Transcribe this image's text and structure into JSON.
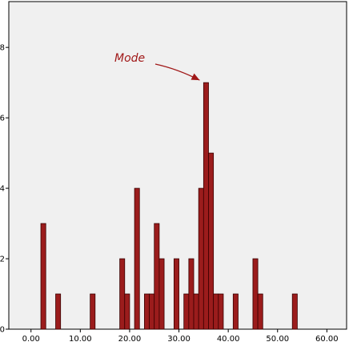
{
  "chart_data": {
    "type": "bar",
    "subtype": "histogram",
    "bin_width": 1,
    "xlim": [
      -4.5,
      64
    ],
    "ylim": [
      0,
      9.3
    ],
    "x_ticks": [
      0,
      10,
      20,
      30,
      40,
      50,
      60
    ],
    "x_tick_labels": [
      "0.00",
      "10.00",
      "20.00",
      "30.00",
      "40.00",
      "50.00",
      "60.00"
    ],
    "y_ticks": [
      0,
      2,
      4,
      6,
      8
    ],
    "y_tick_labels": [
      "0",
      "2",
      "4",
      "6",
      "8"
    ],
    "bins": [
      {
        "x": 2.5,
        "count": 3
      },
      {
        "x": 5.5,
        "count": 1
      },
      {
        "x": 12.5,
        "count": 1
      },
      {
        "x": 18.5,
        "count": 2
      },
      {
        "x": 19.5,
        "count": 1
      },
      {
        "x": 21.5,
        "count": 4
      },
      {
        "x": 23.5,
        "count": 1
      },
      {
        "x": 24.5,
        "count": 1
      },
      {
        "x": 25.5,
        "count": 3
      },
      {
        "x": 26.5,
        "count": 2
      },
      {
        "x": 29.5,
        "count": 2
      },
      {
        "x": 31.5,
        "count": 1
      },
      {
        "x": 32.5,
        "count": 2
      },
      {
        "x": 33.5,
        "count": 1
      },
      {
        "x": 34.5,
        "count": 4
      },
      {
        "x": 35.5,
        "count": 7
      },
      {
        "x": 36.5,
        "count": 5
      },
      {
        "x": 37.5,
        "count": 1
      },
      {
        "x": 38.5,
        "count": 1
      },
      {
        "x": 41.5,
        "count": 1
      },
      {
        "x": 45.5,
        "count": 2
      },
      {
        "x": 46.5,
        "count": 1
      },
      {
        "x": 53.5,
        "count": 1
      }
    ],
    "annotation": {
      "text": "Mode",
      "points_to": {
        "x": 35.5,
        "count": 7
      }
    },
    "grid": false,
    "legend": "none",
    "colors": {
      "bar_fill": "#9b1c1c",
      "bar_stroke": "#3a0000",
      "plot_background": "#f0f0f0",
      "annotation": "#a01818"
    }
  }
}
